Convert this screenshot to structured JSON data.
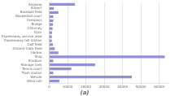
{
  "chart_data": {
    "type": "bar",
    "orientation": "horizontal",
    "title": "(a)",
    "categories": [
      "Airplane",
      "Airport",
      "Baseball field",
      "Basketball court",
      "Overpass",
      "Bridge",
      "Chimney",
      "Dam",
      "Expressway service area",
      "Expressway toll station",
      "Golf field",
      "Ground track field",
      "Harbor",
      "Ship",
      "Stadium",
      "Storage tank",
      "Tennis court",
      "Train station",
      "Vehicle",
      "Wind mill"
    ],
    "values": [
      14000,
      2500,
      5000,
      2200,
      2200,
      2000,
      1800,
      1500,
      1400,
      1400,
      2000,
      3000,
      5000,
      63000,
      2200,
      25000,
      12000,
      2200,
      45000,
      5500
    ],
    "color": "#9090d8",
    "xlim": [
      0,
      65000
    ],
    "xticks": [
      0,
      10000,
      20000,
      30000,
      40000,
      50000,
      60000
    ],
    "grid": true
  }
}
